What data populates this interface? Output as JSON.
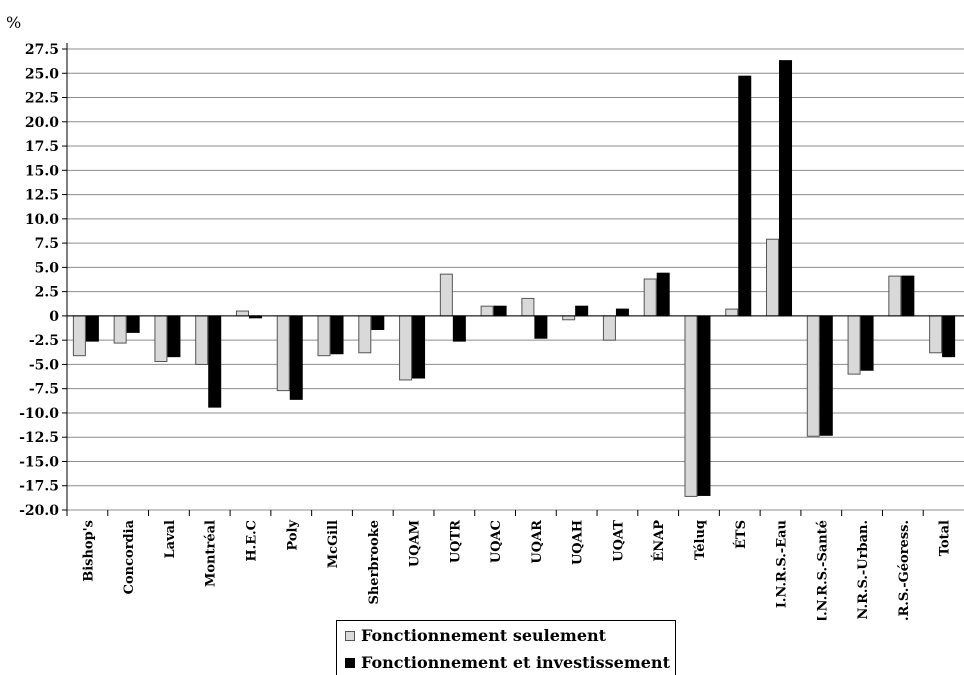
{
  "chart_data": {
    "type": "bar",
    "unit_label": "%",
    "y_ticks": [
      "27.5",
      "25.0",
      "22.5",
      "20.0",
      "17.5",
      "15.0",
      "12.5",
      "10.0",
      "7.5",
      "5.0",
      "2.5",
      "0",
      "-2.5",
      "-5.0",
      "-7.5",
      "-10.0",
      "-12.5",
      "-15.0",
      "-17.5",
      "-20.0"
    ],
    "ylim": [
      -20,
      27.5
    ],
    "grid": true,
    "legend_position": "bottom",
    "categories": [
      "Bishop's",
      "Concordia",
      "Laval",
      "Montréal",
      "H.E.C",
      "Poly",
      "McGill",
      "Sherbrooke",
      "UQAM",
      "UQTR",
      "UQAC",
      "UQAR",
      "UQAH",
      "UQAT",
      "ÉNAP",
      "Téluq",
      "ÉTS",
      "I.N.R.S.-Eau",
      "I.N.R.S.-Santé",
      "I.N.R.S.-Urban.",
      "I.N.R.S.-Géoress.",
      "Total"
    ],
    "series": [
      {
        "name": "Fonctionnement seulement",
        "color": "#d9d9d9",
        "values": [
          -4.1,
          -2.8,
          -4.7,
          -5.0,
          0.5,
          -7.7,
          -4.1,
          -3.8,
          -6.6,
          4.3,
          1.0,
          1.8,
          -0.4,
          -2.5,
          3.8,
          -18.6,
          0.7,
          7.9,
          -12.4,
          -6.0,
          4.1,
          -3.8
        ]
      },
      {
        "name": "Fonctionnement et investissement",
        "color": "#000000",
        "values": [
          -2.6,
          -1.7,
          -4.2,
          -9.4,
          -0.2,
          -8.6,
          -3.9,
          -1.4,
          -6.4,
          -2.6,
          1.0,
          -2.3,
          1.0,
          0.7,
          4.4,
          -18.5,
          24.7,
          26.3,
          -12.3,
          -5.6,
          4.1,
          -4.2
        ]
      }
    ]
  }
}
